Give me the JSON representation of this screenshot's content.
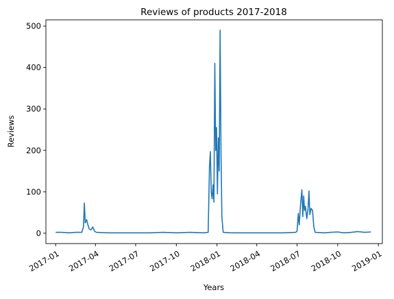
{
  "chart_data": {
    "type": "line",
    "title": "Reviews of products 2017-2018",
    "xlabel": "Years",
    "ylabel": "Reviews",
    "x_type": "date",
    "xlim": [
      "2016-12-10",
      "2019-01-10"
    ],
    "ylim": [
      -25,
      515
    ],
    "x_ticks": [
      "2017-01",
      "2017-04",
      "2017-07",
      "2017-10",
      "2018-01",
      "2018-04",
      "2018-07",
      "2018-10",
      "2019-01"
    ],
    "y_ticks": [
      0,
      100,
      200,
      300,
      400,
      500
    ],
    "grid": false,
    "legend": "none",
    "line_color": "#1f77b4",
    "series": [
      {
        "points": [
          [
            "2017-01-01",
            2
          ],
          [
            "2017-01-15",
            2
          ],
          [
            "2017-02-01",
            1
          ],
          [
            "2017-02-15",
            2
          ],
          [
            "2017-03-01",
            2
          ],
          [
            "2017-03-05",
            15
          ],
          [
            "2017-03-07",
            73
          ],
          [
            "2017-03-09",
            25
          ],
          [
            "2017-03-12",
            33
          ],
          [
            "2017-03-15",
            20
          ],
          [
            "2017-03-18",
            10
          ],
          [
            "2017-03-22",
            8
          ],
          [
            "2017-03-26",
            15
          ],
          [
            "2017-03-30",
            5
          ],
          [
            "2017-04-03",
            2
          ],
          [
            "2017-05-01",
            1
          ],
          [
            "2017-06-01",
            1
          ],
          [
            "2017-07-01",
            1
          ],
          [
            "2017-08-01",
            1
          ],
          [
            "2017-09-01",
            2
          ],
          [
            "2017-10-01",
            1
          ],
          [
            "2017-11-01",
            2
          ],
          [
            "2017-12-01",
            1
          ],
          [
            "2017-12-12",
            2
          ],
          [
            "2017-12-15",
            160
          ],
          [
            "2017-12-17",
            197
          ],
          [
            "2017-12-19",
            100
          ],
          [
            "2017-12-21",
            83
          ],
          [
            "2017-12-23",
            117
          ],
          [
            "2017-12-25",
            75
          ],
          [
            "2017-12-27",
            410
          ],
          [
            "2017-12-29",
            200
          ],
          [
            "2017-12-31",
            255
          ],
          [
            "2018-01-02",
            95
          ],
          [
            "2018-01-04",
            230
          ],
          [
            "2018-01-06",
            150
          ],
          [
            "2018-01-08",
            490
          ],
          [
            "2018-01-10",
            200
          ],
          [
            "2018-01-12",
            40
          ],
          [
            "2018-01-15",
            2
          ],
          [
            "2018-02-01",
            1
          ],
          [
            "2018-03-01",
            1
          ],
          [
            "2018-04-01",
            1
          ],
          [
            "2018-05-01",
            1
          ],
          [
            "2018-06-01",
            1
          ],
          [
            "2018-06-28",
            2
          ],
          [
            "2018-07-01",
            5
          ],
          [
            "2018-07-04",
            48
          ],
          [
            "2018-07-06",
            20
          ],
          [
            "2018-07-09",
            70
          ],
          [
            "2018-07-12",
            105
          ],
          [
            "2018-07-14",
            40
          ],
          [
            "2018-07-16",
            90
          ],
          [
            "2018-07-18",
            55
          ],
          [
            "2018-07-20",
            65
          ],
          [
            "2018-07-23",
            35
          ],
          [
            "2018-07-26",
            60
          ],
          [
            "2018-07-28",
            102
          ],
          [
            "2018-07-30",
            45
          ],
          [
            "2018-08-02",
            60
          ],
          [
            "2018-08-05",
            55
          ],
          [
            "2018-08-08",
            15
          ],
          [
            "2018-08-11",
            2
          ],
          [
            "2018-09-01",
            1
          ],
          [
            "2018-09-15",
            2
          ],
          [
            "2018-10-01",
            3
          ],
          [
            "2018-10-15",
            1
          ],
          [
            "2018-11-01",
            2
          ],
          [
            "2018-11-15",
            4
          ],
          [
            "2018-12-01",
            2
          ],
          [
            "2018-12-15",
            3
          ]
        ]
      }
    ]
  }
}
